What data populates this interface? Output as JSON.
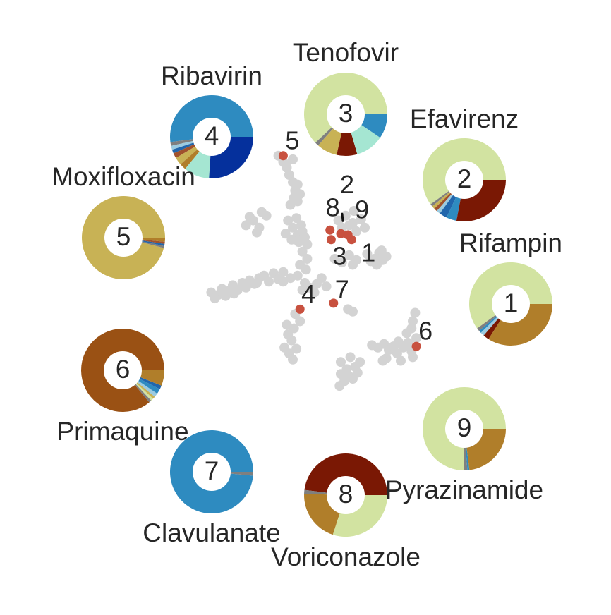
{
  "chart_data": {
    "type": "scatter",
    "title": "",
    "xlabel": "",
    "ylabel": "",
    "grid": false,
    "background_points": [
      [
        -9.8,
        4.2
      ],
      [
        -9.2,
        4.0
      ],
      [
        -8.9,
        4.5
      ],
      [
        -8.4,
        4.3
      ],
      [
        -8.0,
        4.8
      ],
      [
        -7.6,
        4.4
      ],
      [
        -7.2,
        5.0
      ],
      [
        -6.6,
        5.2
      ],
      [
        -6.2,
        4.9
      ],
      [
        -5.8,
        5.4
      ],
      [
        -5.4,
        5.6
      ],
      [
        -5.0,
        5.1
      ],
      [
        -4.6,
        5.8
      ],
      [
        -4.2,
        5.3
      ],
      [
        -3.8,
        5.9
      ],
      [
        -9.5,
        3.7
      ],
      [
        -8.6,
        3.9
      ],
      [
        -7.9,
        4.1
      ],
      [
        -6.9,
        4.6
      ],
      [
        -6.0,
        5.0
      ],
      [
        -6.9,
        9.8
      ],
      [
        -6.3,
        10.2
      ],
      [
        -5.8,
        9.6
      ],
      [
        -5.2,
        10.6
      ],
      [
        -6.6,
        10.5
      ],
      [
        -5.6,
        10.9
      ],
      [
        -6.0,
        9.2
      ],
      [
        -4.2,
        15.6
      ],
      [
        -3.8,
        15.1
      ],
      [
        -3.5,
        14.6
      ],
      [
        -3.3,
        14.0
      ],
      [
        -3.0,
        13.4
      ],
      [
        -2.8,
        12.7
      ],
      [
        -2.9,
        12.1
      ],
      [
        -3.2,
        11.5
      ],
      [
        -2.6,
        13.2
      ],
      [
        -3.6,
        14.9
      ],
      [
        -2.6,
        11.8
      ],
      [
        -3.0,
        15.3
      ],
      [
        -2.4,
        12.4
      ],
      [
        -3.4,
        10.2
      ],
      [
        -3.0,
        9.6
      ],
      [
        -2.7,
        10.4
      ],
      [
        -2.3,
        9.8
      ],
      [
        -3.6,
        9.1
      ],
      [
        -2.6,
        9.0
      ],
      [
        -2.2,
        9.3
      ],
      [
        -3.1,
        8.6
      ],
      [
        -2.5,
        8.4
      ],
      [
        -2.0,
        8.8
      ],
      [
        -1.8,
        8.2
      ],
      [
        -2.2,
        7.6
      ],
      [
        -1.8,
        7.0
      ],
      [
        -2.4,
        6.5
      ],
      [
        -1.9,
        6.1
      ],
      [
        -2.6,
        5.6
      ],
      [
        -2.0,
        5.0
      ],
      [
        -1.6,
        4.6
      ],
      [
        -1.0,
        4.9
      ],
      [
        -0.6,
        5.4
      ],
      [
        -0.2,
        4.7
      ],
      [
        -3.8,
        5.1
      ],
      [
        -3.2,
        5.4
      ],
      [
        -1.2,
        4.2
      ],
      [
        -2.2,
        4.4
      ],
      [
        -2.8,
        2.4
      ],
      [
        -2.4,
        1.8
      ],
      [
        -2.9,
        1.2
      ],
      [
        -3.4,
        0.7
      ],
      [
        -3.1,
        0.2
      ],
      [
        -3.7,
        -0.4
      ],
      [
        -3.3,
        -0.9
      ],
      [
        -2.7,
        -0.5
      ],
      [
        -3.0,
        -1.4
      ],
      [
        -3.5,
        1.5
      ],
      [
        0.8,
        10.2
      ],
      [
        1.4,
        10.6
      ],
      [
        2.0,
        10.0
      ],
      [
        1.1,
        9.6
      ],
      [
        2.3,
        9.3
      ],
      [
        2.7,
        10.3
      ],
      [
        2.1,
        11.0
      ],
      [
        1.7,
        9.8
      ],
      [
        3.0,
        9.6
      ],
      [
        0.5,
        7.0
      ],
      [
        1.1,
        6.7
      ],
      [
        1.7,
        7.3
      ],
      [
        2.3,
        6.9
      ],
      [
        2.0,
        6.5
      ],
      [
        3.2,
        7.4
      ],
      [
        3.8,
        7.0
      ],
      [
        4.2,
        7.5
      ],
      [
        4.5,
        6.9
      ],
      [
        4.0,
        6.5
      ],
      [
        3.5,
        6.8
      ],
      [
        4.8,
        7.2
      ],
      [
        4.4,
        7.7
      ],
      [
        1.6,
        2.8
      ],
      [
        2.0,
        2.6
      ],
      [
        1.0,
        -1.6
      ],
      [
        1.5,
        -2.2
      ],
      [
        1.0,
        -2.6
      ],
      [
        2.2,
        -2.0
      ],
      [
        1.7,
        -2.8
      ],
      [
        2.4,
        -2.5
      ],
      [
        2.0,
        -3.0
      ],
      [
        1.3,
        -3.2
      ],
      [
        2.6,
        -1.6
      ],
      [
        1.8,
        -1.2
      ],
      [
        0.9,
        -3.6
      ],
      [
        3.6,
        -0.2
      ],
      [
        4.1,
        -0.4
      ],
      [
        4.6,
        -0.1
      ],
      [
        5.0,
        -0.6
      ],
      [
        5.4,
        -0.3
      ],
      [
        5.8,
        0.1
      ],
      [
        6.2,
        -0.4
      ],
      [
        6.6,
        0.0
      ],
      [
        5.7,
        -0.9
      ],
      [
        4.8,
        -1.3
      ],
      [
        6.9,
        -0.7
      ],
      [
        7.3,
        0.4
      ],
      [
        6.5,
        0.8
      ],
      [
        7.0,
        -1.2
      ],
      [
        6.0,
        -1.5
      ],
      [
        7.0,
        1.8
      ],
      [
        7.2,
        2.5
      ],
      [
        6.9,
        1.2
      ],
      [
        4.5,
        -1.5
      ]
    ],
    "highlighted": [
      {
        "label": "1",
        "x": 1.9,
        "y": 8.6
      },
      {
        "label": "2",
        "x": 1.0,
        "y": 9.1
      },
      {
        "label": "3",
        "x": 0.2,
        "y": 8.6
      },
      {
        "label": "4",
        "x": -2.4,
        "y": 2.8
      },
      {
        "label": "5",
        "x": -3.8,
        "y": 15.6
      },
      {
        "label": "6",
        "x": 7.3,
        "y": -0.3
      },
      {
        "label": "7",
        "x": 0.4,
        "y": 3.3
      },
      {
        "label": "8",
        "x": 0.1,
        "y": 9.4
      },
      {
        "label": "9",
        "x": 1.6,
        "y": 9.0
      }
    ],
    "point_colors": {
      "background": "#d3d3d3",
      "highlight": "#c8513f"
    },
    "pie_charts": [
      {
        "id": "1",
        "label": "Rifampin",
        "slices": [
          {
            "value": 60.0,
            "color": "#d2e3a1"
          },
          {
            "value": 1.2,
            "color": "#7f7f7f"
          },
          {
            "value": 1.0,
            "color": "#2e8bc0"
          },
          {
            "value": 1.5,
            "color": "#9ccbe0"
          },
          {
            "value": 2.3,
            "color": "#7a1804"
          },
          {
            "value": 34.0,
            "color": "#b07e2a"
          }
        ]
      },
      {
        "id": "2",
        "label": "Efavirenz",
        "slices": [
          {
            "value": 60.0,
            "color": "#d2e3a1"
          },
          {
            "value": 1.0,
            "color": "#7f7f7f"
          },
          {
            "value": 1.2,
            "color": "#c8b255"
          },
          {
            "value": 1.3,
            "color": "#a0522d"
          },
          {
            "value": 1.5,
            "color": "#9ccbe0"
          },
          {
            "value": 3.0,
            "color": "#2166ac"
          },
          {
            "value": 4.0,
            "color": "#2e8bc0"
          },
          {
            "value": 28.0,
            "color": "#7a1804"
          }
        ]
      },
      {
        "id": "3",
        "label": "Tenofovir",
        "slices": [
          {
            "value": 62.0,
            "color": "#d2e3a1"
          },
          {
            "value": 1.5,
            "color": "#7f7f7f"
          },
          {
            "value": 8.0,
            "color": "#c8b255"
          },
          {
            "value": 8.0,
            "color": "#7a1804"
          },
          {
            "value": 11.0,
            "color": "#a5e6d2"
          },
          {
            "value": 9.5,
            "color": "#2e8bc0"
          }
        ]
      },
      {
        "id": "4",
        "label": "Ribavirin",
        "slices": [
          {
            "value": 52.0,
            "color": "#2e8bc0"
          },
          {
            "value": 1.5,
            "color": "#7f7f7f"
          },
          {
            "value": 1.5,
            "color": "#9ccbe0"
          },
          {
            "value": 1.5,
            "color": "#2166ac"
          },
          {
            "value": 2.0,
            "color": "#a0522d"
          },
          {
            "value": 3.0,
            "color": "#c8b255"
          },
          {
            "value": 2.5,
            "color": "#b07e2a"
          },
          {
            "value": 10.0,
            "color": "#a5e6d2"
          },
          {
            "value": 26.0,
            "color": "#05309c"
          }
        ]
      },
      {
        "id": "5",
        "label": "Moxifloxacin",
        "slices": [
          {
            "value": 96.0,
            "color": "#c8b255"
          },
          {
            "value": 0.8,
            "color": "#7f7f7f"
          },
          {
            "value": 0.8,
            "color": "#2166ac"
          },
          {
            "value": 0.8,
            "color": "#a0522d"
          },
          {
            "value": 1.6,
            "color": "#b07e2a"
          }
        ]
      },
      {
        "id": "6",
        "label": "Primaquine",
        "slices": [
          {
            "value": 86.0,
            "color": "#9a5114"
          },
          {
            "value": 1.0,
            "color": "#7f7f7f"
          },
          {
            "value": 1.0,
            "color": "#d2e3a1"
          },
          {
            "value": 1.0,
            "color": "#c8b255"
          },
          {
            "value": 1.5,
            "color": "#9ccbe0"
          },
          {
            "value": 2.0,
            "color": "#2e8bc0"
          },
          {
            "value": 1.5,
            "color": "#2166ac"
          },
          {
            "value": 6.0,
            "color": "#b07e2a"
          }
        ]
      },
      {
        "id": "7",
        "label": "Clavulanate",
        "slices": [
          {
            "value": 98.5,
            "color": "#2e8bc0"
          },
          {
            "value": 1.5,
            "color": "#7f7f7f"
          }
        ]
      },
      {
        "id": "8",
        "label": "Voriconazole",
        "slices": [
          {
            "value": 48.0,
            "color": "#7a1804"
          },
          {
            "value": 1.5,
            "color": "#7f7f7f"
          },
          {
            "value": 20.5,
            "color": "#b07e2a"
          },
          {
            "value": 30.0,
            "color": "#d2e3a1"
          }
        ]
      },
      {
        "id": "9",
        "label": "Pyrazinamide",
        "slices": [
          {
            "value": 75.0,
            "color": "#d2e3a1"
          },
          {
            "value": 1.2,
            "color": "#7f7f7f"
          },
          {
            "value": 0.8,
            "color": "#2e8bc0"
          },
          {
            "value": 23.0,
            "color": "#b07e2a"
          }
        ]
      }
    ]
  }
}
